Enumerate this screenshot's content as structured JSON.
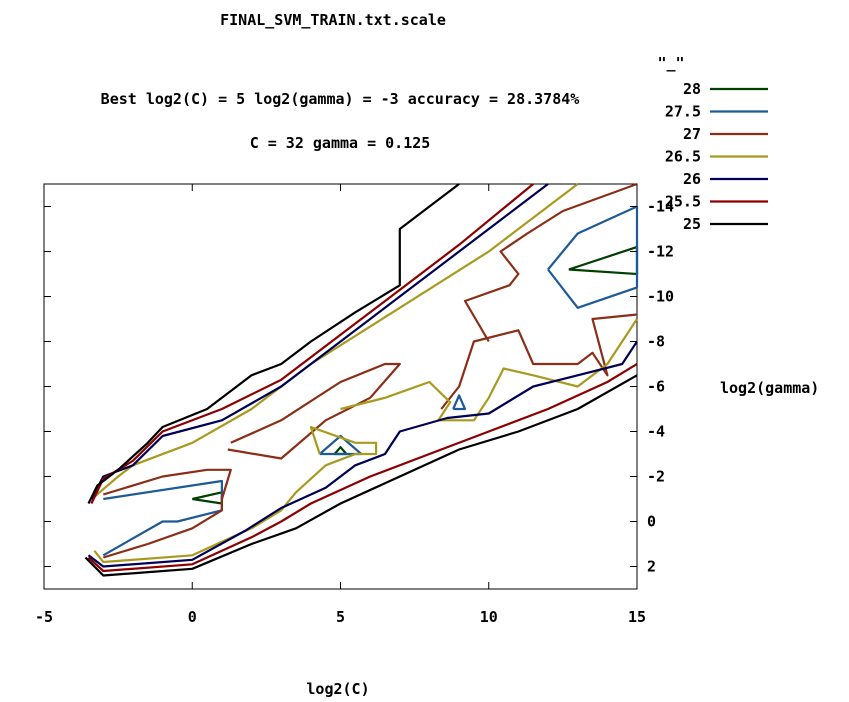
{
  "chart_data": {
    "type": "contour",
    "title": "FINAL_SVM_TRAIN.txt.scale",
    "subtitle_line1": "Best log2(C) = 5  log2(gamma) = -3  accuracy = 28.3784%",
    "subtitle_line2": "C = 32  gamma = 0.125",
    "xlabel": "log2(C)",
    "ylabel": "log2(gamma)",
    "xlim": [
      -5,
      15
    ],
    "ylim": [
      3,
      -15
    ],
    "x_ticks": [
      -5,
      0,
      5,
      10,
      15
    ],
    "y_ticks": [
      -14,
      -12,
      -10,
      -8,
      -6,
      -4,
      -2,
      0,
      2
    ],
    "y_tick_labels": [
      "-14",
      "-12",
      "-10",
      "-8",
      "-6",
      "-4",
      "-2",
      "0",
      "2"
    ],
    "x_tick_labels": [
      "-5",
      "0",
      "5",
      "10",
      "15"
    ],
    "legend_title": "\"_\"",
    "legend_position": "top-right",
    "grid": false,
    "series": [
      {
        "name": "28",
        "color": "#003f00",
        "paths": [
          [
            [
              0,
              -1
            ],
            [
              1,
              -1.3
            ],
            [
              1,
              -0.8
            ],
            [
              0,
              -1
            ]
          ],
          [
            [
              4.8,
              -3
            ],
            [
              5,
              -3.3
            ],
            [
              5.2,
              -3
            ],
            [
              4.8,
              -3
            ]
          ],
          [
            [
              12.7,
              -11.2
            ],
            [
              15,
              -12.2
            ],
            [
              15,
              -11
            ],
            [
              12.7,
              -11.2
            ]
          ]
        ]
      },
      {
        "name": "27.5",
        "color": "#1e5a96",
        "paths": [
          [
            [
              -3,
              -1
            ],
            [
              1,
              -1.8
            ],
            [
              1,
              -0.5
            ],
            [
              -0.5,
              0
            ],
            [
              -1,
              0
            ],
            [
              -3,
              1.5
            ]
          ],
          [
            [
              4.3,
              -3
            ],
            [
              5,
              -3.8
            ],
            [
              5.7,
              -3
            ],
            [
              4.3,
              -3
            ]
          ],
          [
            [
              8.8,
              -5
            ],
            [
              9,
              -5.6
            ],
            [
              9.2,
              -5
            ],
            [
              8.8,
              -5
            ]
          ],
          [
            [
              12,
              -11.2
            ],
            [
              13,
              -12.8
            ],
            [
              15,
              -14
            ],
            [
              15,
              -10.4
            ],
            [
              13,
              -9.5
            ],
            [
              12,
              -11.2
            ]
          ]
        ]
      },
      {
        "name": "27",
        "color": "#8b2e16",
        "paths": [
          [
            [
              -3,
              -1.2
            ],
            [
              -1,
              -2
            ],
            [
              0.5,
              -2.3
            ],
            [
              1.3,
              -2.3
            ],
            [
              1,
              -1
            ],
            [
              1,
              -0.5
            ],
            [
              0,
              0.3
            ],
            [
              -1.5,
              1
            ],
            [
              -3,
              1.6
            ]
          ],
          [
            [
              1.2,
              -3.2
            ],
            [
              3,
              -2.8
            ],
            [
              4.5,
              -4.5
            ],
            [
              6,
              -5.5
            ],
            [
              7,
              -7
            ],
            [
              6.5,
              -7
            ],
            [
              5,
              -6.2
            ],
            [
              3,
              -4.5
            ],
            [
              1.3,
              -3.5
            ]
          ],
          [
            [
              8.4,
              -5
            ],
            [
              9,
              -6
            ],
            [
              9.5,
              -8
            ],
            [
              11,
              -8.5
            ],
            [
              11.5,
              -7
            ],
            [
              13,
              -7
            ],
            [
              13.5,
              -7.5
            ],
            [
              14,
              -6.5
            ],
            [
              13.5,
              -9
            ],
            [
              15,
              -9.2
            ]
          ],
          [
            [
              10,
              -8
            ],
            [
              9.2,
              -9.8
            ],
            [
              10.7,
              -10.5
            ],
            [
              11,
              -11
            ],
            [
              10.4,
              -12
            ],
            [
              11.3,
              -12.8
            ],
            [
              12.5,
              -13.8
            ],
            [
              15,
              -15
            ]
          ]
        ]
      },
      {
        "name": "26.5",
        "color": "#a89a1f",
        "paths": [
          [
            [
              -3.3,
              -1.1
            ],
            [
              -2.5,
              -2
            ],
            [
              -2,
              -2.5
            ],
            [
              0,
              -3.5
            ],
            [
              2,
              -5
            ],
            [
              4,
              -7
            ],
            [
              7,
              -9.5
            ],
            [
              10,
              -12
            ],
            [
              13,
              -15
            ]
          ],
          [
            [
              -3.3,
              1.3
            ],
            [
              -3,
              1.8
            ],
            [
              0,
              1.5
            ],
            [
              2,
              0.3
            ],
            [
              3,
              -0.5
            ],
            [
              3.5,
              -1.3
            ],
            [
              4.5,
              -2.5
            ],
            [
              5.5,
              -3
            ],
            [
              6.2,
              -3
            ],
            [
              6.2,
              -3.5
            ],
            [
              5.5,
              -3.5
            ],
            [
              4,
              -4.2
            ],
            [
              4.3,
              -3
            ]
          ],
          [
            [
              5,
              -5
            ],
            [
              6.5,
              -5.5
            ],
            [
              8,
              -6.2
            ],
            [
              8.7,
              -5.3
            ],
            [
              8.3,
              -4.5
            ],
            [
              9.5,
              -4.5
            ],
            [
              10,
              -5.5
            ],
            [
              10.5,
              -6.8
            ],
            [
              11.5,
              -6.5
            ],
            [
              13,
              -6
            ],
            [
              14,
              -7
            ],
            [
              14.5,
              -8
            ],
            [
              15,
              -9
            ]
          ]
        ]
      },
      {
        "name": "26",
        "color": "#000055",
        "paths": [
          [
            [
              -3.4,
              -1
            ],
            [
              -3,
              -2
            ],
            [
              -2,
              -2.5
            ],
            [
              -1,
              -3.8
            ],
            [
              1,
              -4.5
            ],
            [
              3,
              -6
            ],
            [
              6,
              -9
            ],
            [
              9,
              -12
            ],
            [
              12,
              -15
            ]
          ],
          [
            [
              -3.5,
              1.5
            ],
            [
              -3,
              2
            ],
            [
              0,
              1.7
            ],
            [
              1.8,
              0.4
            ],
            [
              3,
              -0.6
            ],
            [
              4.5,
              -1.5
            ],
            [
              5.5,
              -2.5
            ],
            [
              6.5,
              -3
            ],
            [
              7,
              -4
            ],
            [
              8.6,
              -4.6
            ],
            [
              10,
              -4.8
            ],
            [
              11.5,
              -6
            ],
            [
              13,
              -6.5
            ],
            [
              14.5,
              -7
            ],
            [
              15,
              -8
            ]
          ]
        ]
      },
      {
        "name": "25.5",
        "color": "#8b0000",
        "paths": [
          [
            [
              -3.4,
              -0.8
            ],
            [
              -3,
              -1.9
            ],
            [
              -2,
              -2.7
            ],
            [
              -1,
              -4
            ],
            [
              1,
              -5
            ],
            [
              3,
              -6.3
            ],
            [
              6,
              -9.3
            ],
            [
              9,
              -12.3
            ],
            [
              11.5,
              -15
            ]
          ],
          [
            [
              -3.5,
              1.6
            ],
            [
              -3,
              2.2
            ],
            [
              0,
              1.9
            ],
            [
              2,
              0.7
            ],
            [
              3,
              0
            ],
            [
              4,
              -0.8
            ],
            [
              6,
              -2
            ],
            [
              8,
              -3
            ],
            [
              10,
              -4
            ],
            [
              12,
              -5
            ],
            [
              14,
              -6.2
            ],
            [
              15,
              -7
            ]
          ]
        ]
      },
      {
        "name": "25",
        "color": "#000000",
        "paths": [
          [
            [
              -3.5,
              -0.8
            ],
            [
              -3.2,
              -1.6
            ],
            [
              -2.5,
              -2.3
            ],
            [
              -1.5,
              -3.5
            ],
            [
              -1,
              -4.2
            ],
            [
              0.5,
              -5
            ],
            [
              1,
              -5.5
            ],
            [
              2,
              -6.5
            ],
            [
              3,
              -7
            ],
            [
              4,
              -8
            ],
            [
              5.5,
              -9.3
            ],
            [
              7,
              -10.5
            ],
            [
              7,
              -13
            ],
            [
              8,
              -14
            ],
            [
              9,
              -15
            ]
          ],
          [
            [
              -3.6,
              1.6
            ],
            [
              -3,
              2.4
            ],
            [
              0,
              2.1
            ],
            [
              2,
              1
            ],
            [
              3.5,
              0.3
            ],
            [
              5,
              -0.8
            ],
            [
              7,
              -2
            ],
            [
              9,
              -3.2
            ],
            [
              11,
              -4
            ],
            [
              13,
              -5
            ],
            [
              15,
              -6.5
            ]
          ]
        ]
      }
    ]
  }
}
